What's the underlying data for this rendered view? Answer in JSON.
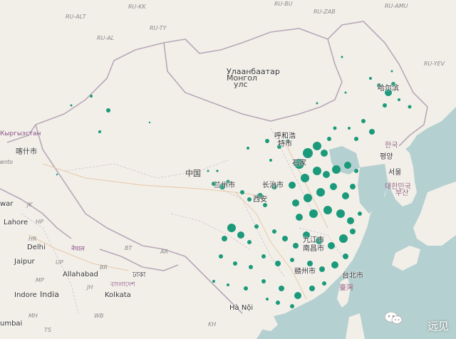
{
  "map": {
    "labels": {
      "ru_kk": "RU-KK",
      "ru_bu": "RU-BU",
      "ru_zab": "RU-ZAB",
      "ru_amu": "RU-AMU",
      "ru_alt": "RU-ALT",
      "ru_ty": "RU-TY",
      "ru_al": "RU-AL",
      "ru_yev": "RU-YEV",
      "kyrgyzstan": "Кыргызстан",
      "kashgar": "喀什市",
      "ulaanbaatar": "Улаанбаатар",
      "mongolia": "Монгол",
      "mongolia2": "улс",
      "china": "中国",
      "harbin": "哈尔滨",
      "hohhot": "呼和浩",
      "hohhot2": "特市",
      "shijiazhuang": "石家",
      "lanzhou": "兰州市",
      "changzhi": "长治市",
      "xian": "西安",
      "jiujiang": "九江市",
      "nanchang": "南昌市",
      "ganzhou": "赣州市",
      "taipei": "台北市",
      "taiwan": "臺灣",
      "pyongyang": "평양",
      "seoul": "서울",
      "daegu": "대한민국",
      "busan": "부산",
      "south_korea_lbl": "한국",
      "lahore": "Lahore",
      "delhi": "Delhi",
      "nepal": "नेपाल",
      "jaipur": "Jaipur",
      "allahabad": "Allahabad",
      "bangladesh": "বাংলাদেশ",
      "dhaka": "ঢাকা",
      "kolkata": "Kolkata",
      "indore": "Indore",
      "india": "India",
      "mumbai": "umbai",
      "hanoi": "Hà Nội",
      "war": "war",
      "ento": "ento",
      "hp": "HP",
      "jk": "JK",
      "hr": "HR",
      "up": "UP",
      "br": "BR",
      "jh": "JH",
      "wb": "WB",
      "mp": "MP",
      "ar": "AR",
      "mh": "MH",
      "ts": "TS",
      "kh": "KH",
      "bt": "BT"
    },
    "watermark": "远见",
    "colors": {
      "land": "#f2efe9",
      "water": "#b5d0d0",
      "dots": "#1a9a7a",
      "border": "#b8a8b8",
      "road": "#e8c8a8"
    }
  }
}
